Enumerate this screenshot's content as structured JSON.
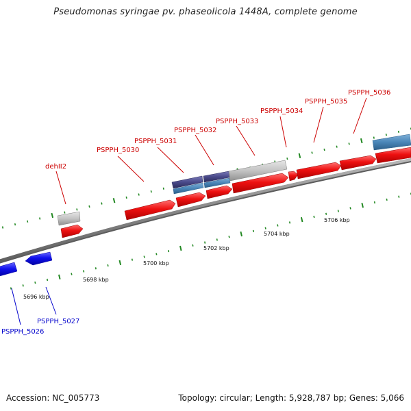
{
  "title": "Pseudomonas syringae pv. phaseolicola 1448A, complete genome",
  "footer": {
    "accession": "Accession: NC_005773",
    "topology": "Topology: circular; Length: 5,928,787 bp; Genes: 5,066"
  },
  "colors": {
    "forward_gene": "#ee1111",
    "reverse_gene": "#1111ee",
    "other_gene": "#bbbbbb",
    "feature_dark": "#4a4a8a",
    "feature_blue": "#4a86b8",
    "backbone": "#888888",
    "ticks": "#228822",
    "label_forward": "#cc0000",
    "label_reverse": "#0000cc"
  },
  "scale": {
    "unit": "kbp",
    "labels": [
      "5696 kbp",
      "5698 kbp",
      "5700 kbp",
      "5702 kbp",
      "5704 kbp",
      "5706 kbp"
    ]
  },
  "genes": [
    {
      "name": "PSPPH_5026",
      "strand": "reverse"
    },
    {
      "name": "PSPPH_5027",
      "strand": "reverse"
    },
    {
      "name": "dehII2",
      "strand": "forward"
    },
    {
      "name": "PSPPH_5030",
      "strand": "forward"
    },
    {
      "name": "PSPPH_5031",
      "strand": "forward"
    },
    {
      "name": "PSPPH_5032",
      "strand": "forward"
    },
    {
      "name": "PSPPH_5033",
      "strand": "forward"
    },
    {
      "name": "PSPPH_5034",
      "strand": "forward"
    },
    {
      "name": "PSPPH_5035",
      "strand": "forward"
    },
    {
      "name": "PSPPH_5036",
      "strand": "forward"
    }
  ]
}
